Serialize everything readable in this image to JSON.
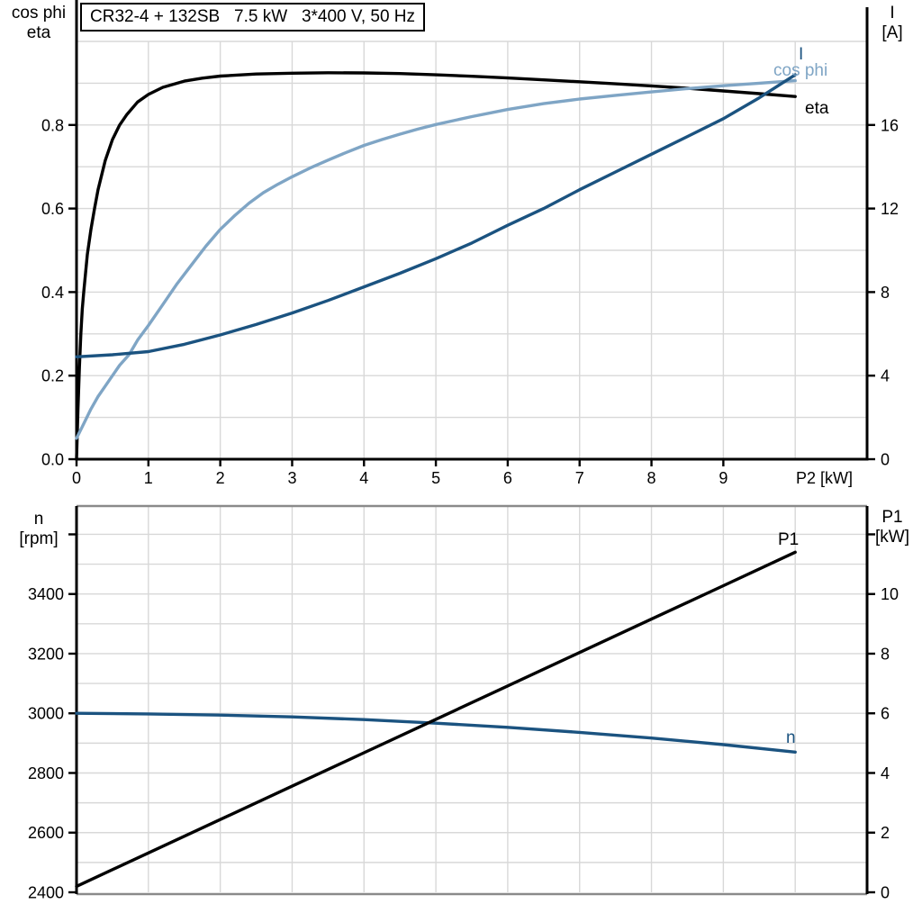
{
  "title_box": {
    "text": "CR32-4 + 132SB   7.5 kW   3*400 V, 50 Hz"
  },
  "colors": {
    "eta": "#000000",
    "cos_phi": "#7fa5c5",
    "current": "#1b5380",
    "n": "#1b5380",
    "p1": "#000000",
    "grid": "#d8d8d8",
    "axis": "#000000",
    "frame_gray": "#8a8a8a"
  },
  "chart_data": [
    {
      "type": "line",
      "name": "efficiency-current-chart",
      "title": "CR32-4 + 132SB   7.5 kW   3*400 V, 50 Hz",
      "x_axis": {
        "label": "P2 [kW]",
        "min": 0,
        "max": 11,
        "ticks": [
          {
            "v": 0,
            "label": "0"
          },
          {
            "v": 1,
            "label": "1"
          },
          {
            "v": 2,
            "label": "2"
          },
          {
            "v": 3,
            "label": "3"
          },
          {
            "v": 4,
            "label": "4"
          },
          {
            "v": 5,
            "label": "5"
          },
          {
            "v": 6,
            "label": "6"
          },
          {
            "v": 7,
            "label": "7"
          },
          {
            "v": 8,
            "label": "8"
          },
          {
            "v": 9,
            "label": "9"
          }
        ],
        "grid": [
          1,
          2,
          3,
          4,
          5,
          6,
          7,
          8,
          9,
          10
        ]
      },
      "y_left": {
        "title_lines": [
          "cos phi",
          "eta"
        ],
        "min": 0,
        "max": 1.0,
        "grid_step": 0.1,
        "ticks": [
          {
            "v": 0.0,
            "label": "0.0"
          },
          {
            "v": 0.2,
            "label": "0.2"
          },
          {
            "v": 0.4,
            "label": "0.4"
          },
          {
            "v": 0.6,
            "label": "0.6"
          },
          {
            "v": 0.8,
            "label": "0.8"
          }
        ]
      },
      "y_right": {
        "title_lines": [
          "I",
          "[A]"
        ],
        "min": 0,
        "max": 20,
        "ticks": [
          {
            "v": 0,
            "label": "0"
          },
          {
            "v": 4,
            "label": "4"
          },
          {
            "v": 8,
            "label": "8"
          },
          {
            "v": 12,
            "label": "12"
          },
          {
            "v": 16,
            "label": "16"
          }
        ]
      },
      "series": [
        {
          "name": "eta",
          "label": "eta",
          "axis": "left",
          "color_key": "eta",
          "points": [
            [
              0,
              0
            ],
            [
              0.02,
              0.12
            ],
            [
              0.04,
              0.22
            ],
            [
              0.06,
              0.3
            ],
            [
              0.08,
              0.36
            ],
            [
              0.1,
              0.4
            ],
            [
              0.15,
              0.49
            ],
            [
              0.2,
              0.55
            ],
            [
              0.25,
              0.6
            ],
            [
              0.3,
              0.645
            ],
            [
              0.4,
              0.715
            ],
            [
              0.5,
              0.765
            ],
            [
              0.6,
              0.8
            ],
            [
              0.7,
              0.825
            ],
            [
              0.85,
              0.855
            ],
            [
              1,
              0.873
            ],
            [
              1.2,
              0.89
            ],
            [
              1.5,
              0.905
            ],
            [
              1.75,
              0.912
            ],
            [
              2,
              0.917
            ],
            [
              2.5,
              0.922
            ],
            [
              3,
              0.924
            ],
            [
              3.5,
              0.925
            ],
            [
              4,
              0.9245
            ],
            [
              4.5,
              0.923
            ],
            [
              5,
              0.92
            ],
            [
              5.5,
              0.9165
            ],
            [
              6,
              0.9125
            ],
            [
              6.5,
              0.908
            ],
            [
              7,
              0.9035
            ],
            [
              7.5,
              0.8985
            ],
            [
              8,
              0.8935
            ],
            [
              8.5,
              0.888
            ],
            [
              9,
              0.8815
            ],
            [
              9.5,
              0.875
            ],
            [
              10,
              0.868
            ]
          ]
        },
        {
          "name": "cos-phi",
          "label": "cos phi",
          "axis": "left",
          "color_key": "cos_phi",
          "points": [
            [
              0,
              0.05
            ],
            [
              0.1,
              0.085
            ],
            [
              0.2,
              0.12
            ],
            [
              0.3,
              0.15
            ],
            [
              0.4,
              0.175
            ],
            [
              0.5,
              0.2
            ],
            [
              0.6,
              0.225
            ],
            [
              0.73,
              0.25
            ],
            [
              0.85,
              0.285
            ],
            [
              1,
              0.32
            ],
            [
              1.2,
              0.37
            ],
            [
              1.4,
              0.42
            ],
            [
              1.6,
              0.465
            ],
            [
              1.8,
              0.51
            ],
            [
              2,
              0.55
            ],
            [
              2.2,
              0.583
            ],
            [
              2.4,
              0.613
            ],
            [
              2.6,
              0.638
            ],
            [
              2.8,
              0.658
            ],
            [
              3,
              0.676
            ],
            [
              3.25,
              0.697
            ],
            [
              3.5,
              0.716
            ],
            [
              3.75,
              0.734
            ],
            [
              4,
              0.751
            ],
            [
              4.25,
              0.765
            ],
            [
              4.5,
              0.778
            ],
            [
              4.75,
              0.79
            ],
            [
              5,
              0.801
            ],
            [
              5.5,
              0.82
            ],
            [
              6,
              0.837
            ],
            [
              6.5,
              0.851
            ],
            [
              7,
              0.862
            ],
            [
              7.5,
              0.871
            ],
            [
              8,
              0.879
            ],
            [
              8.5,
              0.887
            ],
            [
              9,
              0.894
            ],
            [
              9.5,
              0.9
            ],
            [
              10,
              0.906
            ]
          ]
        },
        {
          "name": "current",
          "label": "I",
          "axis": "right",
          "color_key": "current",
          "points": [
            [
              0,
              4.9
            ],
            [
              0.5,
              5.0
            ],
            [
              1,
              5.15
            ],
            [
              1.5,
              5.5
            ],
            [
              2,
              5.95
            ],
            [
              2.5,
              6.45
            ],
            [
              3,
              7.0
            ],
            [
              3.5,
              7.6
            ],
            [
              4,
              8.25
            ],
            [
              4.5,
              8.9
            ],
            [
              5,
              9.6
            ],
            [
              5.5,
              10.35
            ],
            [
              6,
              11.2
            ],
            [
              6.5,
              12.0
            ],
            [
              7,
              12.9
            ],
            [
              7.5,
              13.75
            ],
            [
              8,
              14.6
            ],
            [
              8.5,
              15.45
            ],
            [
              9,
              16.3
            ],
            [
              9.5,
              17.3
            ],
            [
              10,
              18.4
            ]
          ]
        }
      ]
    },
    {
      "type": "line",
      "name": "speed-power-chart",
      "x_axis": {
        "label": "",
        "min": 0,
        "max": 11,
        "ticks": [],
        "grid": [
          1,
          2,
          3,
          4,
          5,
          6,
          7,
          8,
          9,
          10
        ]
      },
      "y_left": {
        "title_lines": [
          "n",
          "[rpm]"
        ],
        "min": 2400,
        "max": 3695,
        "grid_step": 100,
        "ticks": [
          {
            "v": 2400,
            "label": "2400"
          },
          {
            "v": 2600,
            "label": "2600"
          },
          {
            "v": 2800,
            "label": "2800"
          },
          {
            "v": 3000,
            "label": "3000"
          },
          {
            "v": 3200,
            "label": "3200"
          },
          {
            "v": 3400,
            "label": "3400"
          },
          {
            "v": 3600,
            "label": ""
          }
        ]
      },
      "y_right": {
        "title_lines": [
          "P1",
          "[kW]"
        ],
        "min": 0,
        "max": 12.95,
        "ticks": [
          {
            "v": 0,
            "label": "0"
          },
          {
            "v": 2,
            "label": "2"
          },
          {
            "v": 4,
            "label": "4"
          },
          {
            "v": 6,
            "label": "6"
          },
          {
            "v": 8,
            "label": "8"
          },
          {
            "v": 10,
            "label": "10"
          },
          {
            "v": 12,
            "label": ""
          }
        ]
      },
      "series": [
        {
          "name": "speed",
          "label": "n",
          "axis": "left",
          "color_key": "n",
          "points": [
            [
              0,
              3000
            ],
            [
              1,
              2998
            ],
            [
              2,
              2994
            ],
            [
              3,
              2988
            ],
            [
              4,
              2979
            ],
            [
              5,
              2967
            ],
            [
              6,
              2953
            ],
            [
              7,
              2936
            ],
            [
              8,
              2917
            ],
            [
              9,
              2895
            ],
            [
              10,
              2870
            ]
          ]
        },
        {
          "name": "p1",
          "label": "P1",
          "axis": "right",
          "color_key": "p1",
          "points": [
            [
              0,
              0.2
            ],
            [
              1,
              1.32
            ],
            [
              2,
              2.44
            ],
            [
              3,
              3.56
            ],
            [
              4,
              4.68
            ],
            [
              5,
              5.8
            ],
            [
              6,
              6.92
            ],
            [
              7,
              8.04
            ],
            [
              8,
              9.16
            ],
            [
              9,
              10.28
            ],
            [
              10,
              11.4
            ]
          ]
        }
      ]
    }
  ]
}
